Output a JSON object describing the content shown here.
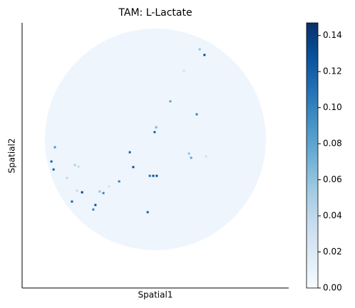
{
  "chart_data": {
    "type": "scatter",
    "title": "TAM: L-Lactate",
    "xlabel": "Spatial1",
    "ylabel": "Spatial2",
    "xlim": [
      0,
      100
    ],
    "ylim": [
      100,
      0
    ],
    "colormap": "Blues",
    "x": [
      68.4,
      66.6,
      60.7,
      55.6,
      65.5,
      49.7,
      50.3,
      40.4,
      62.6,
      63.4,
      69.0,
      41.7,
      12.3,
      11.0,
      11.8,
      19.8,
      21.1,
      16.8,
      47.9,
      49.2,
      50.5,
      36.4,
      30.5,
      29.1,
      22.5,
      20.6,
      18.7,
      27.5,
      26.7,
      47.1,
      32.6
    ],
    "y": [
      12.1,
      10.0,
      18.1,
      29.6,
      34.5,
      41.2,
      39.4,
      48.8,
      49.3,
      50.9,
      50.4,
      54.4,
      46.9,
      52.3,
      55.3,
      53.6,
      54.2,
      58.5,
      57.7,
      57.7,
      57.7,
      59.8,
      64.2,
      63.6,
      63.9,
      63.3,
      67.4,
      68.7,
      70.4,
      71.4,
      61.7
    ],
    "values": [
      0.13,
      0.06,
      0.03,
      0.08,
      0.1,
      0.12,
      0.07,
      0.12,
      0.06,
      0.08,
      0.03,
      0.13,
      0.09,
      0.12,
      0.12,
      0.05,
      0.04,
      0.04,
      0.11,
      0.13,
      0.13,
      0.1,
      0.1,
      0.06,
      0.14,
      0.04,
      0.12,
      0.13,
      0.1,
      0.12,
      0.03
    ],
    "colorbar": {
      "lim": [
        0,
        0.147
      ],
      "ticks": [
        {
          "value": 0,
          "label": "0.00"
        },
        {
          "value": 0.02,
          "label": "0.02"
        },
        {
          "value": 0.04,
          "label": "0.04"
        },
        {
          "value": 0.06,
          "label": "0.06"
        },
        {
          "value": 0.08,
          "label": "0.08"
        },
        {
          "value": 0.1,
          "label": "0.10"
        },
        {
          "value": 0.12,
          "label": "0.12"
        },
        {
          "value": 0.14,
          "label": "0.14"
        }
      ]
    }
  }
}
